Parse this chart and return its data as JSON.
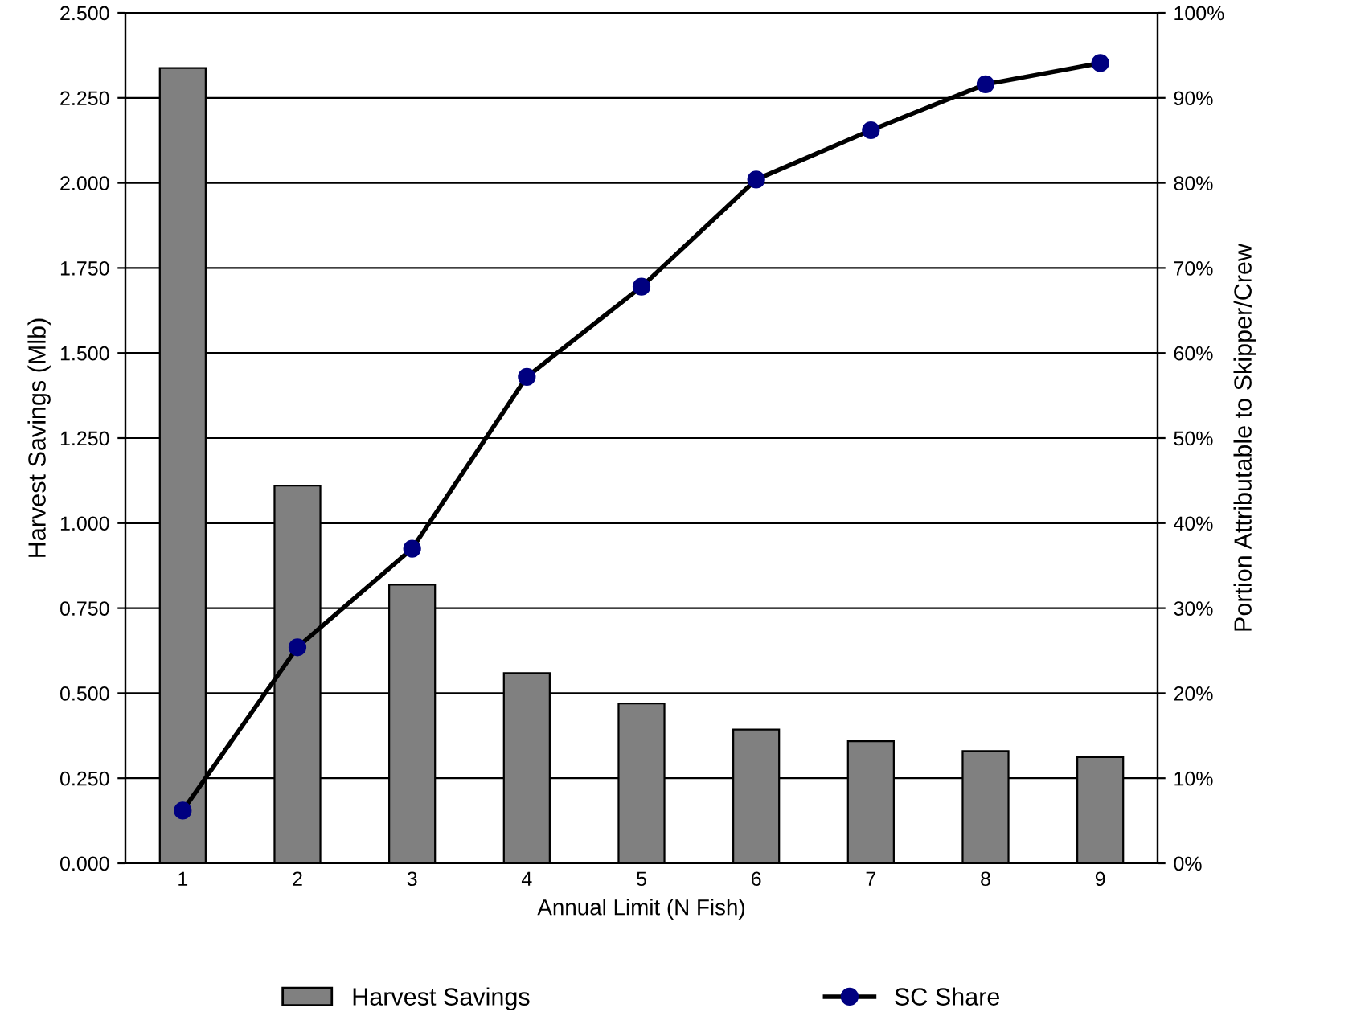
{
  "chart_data": {
    "type": "bar",
    "categories": [
      "1",
      "2",
      "3",
      "4",
      "5",
      "6",
      "7",
      "8",
      "9"
    ],
    "xlabel": "Annual Limit (N Fish)",
    "ylabel": "Harvest Savings (Mlb)",
    "y2label": "Portion Attributable to Skipper/Crew",
    "series": [
      {
        "name": "Harvest Savings",
        "color": "#808080",
        "values": [
          2.338,
          1.11,
          0.819,
          0.559,
          0.47,
          0.393,
          0.359,
          0.33,
          0.312
        ]
      },
      {
        "name": "SC Share",
        "type": "line",
        "axis": "y2",
        "color": "#000080",
        "marker": "circle",
        "values": [
          6.2,
          25.4,
          37.0,
          57.2,
          67.8,
          80.4,
          86.2,
          91.6,
          94.1
        ]
      }
    ],
    "ylim": [
      0,
      2.5
    ],
    "yticks": [
      {
        "value": 0,
        "label": "0.000"
      },
      {
        "value": 0.25,
        "label": "0.250"
      },
      {
        "value": 0.5,
        "label": "0.500"
      },
      {
        "value": 0.75,
        "label": "0.750"
      },
      {
        "value": 1.0,
        "label": "1.000"
      },
      {
        "value": 1.25,
        "label": "1.250"
      },
      {
        "value": 1.5,
        "label": "1.500"
      },
      {
        "value": 1.75,
        "label": "1.750"
      },
      {
        "value": 2.0,
        "label": "2.000"
      },
      {
        "value": 2.25,
        "label": "2.250"
      },
      {
        "value": 2.5,
        "label": "2.500"
      }
    ],
    "y2lim": [
      0,
      100
    ],
    "y2ticks": [
      {
        "value": 0,
        "label": "0%"
      },
      {
        "value": 10,
        "label": "10%"
      },
      {
        "value": 20,
        "label": "20%"
      },
      {
        "value": 30,
        "label": "30%"
      },
      {
        "value": 40,
        "label": "40%"
      },
      {
        "value": 50,
        "label": "50%"
      },
      {
        "value": 60,
        "label": "60%"
      },
      {
        "value": 70,
        "label": "70%"
      },
      {
        "value": 80,
        "label": "80%"
      },
      {
        "value": 90,
        "label": "90%"
      },
      {
        "value": 100,
        "label": "100%"
      }
    ],
    "grid": "y",
    "legend": "bottom"
  }
}
